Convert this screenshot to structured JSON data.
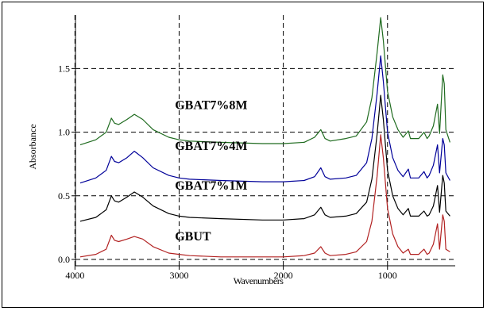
{
  "chart_data": {
    "type": "line",
    "xlabel": "Wavenumbers",
    "ylabel": "Absorbance",
    "xlim": [
      4000,
      350
    ],
    "ylim": [
      0,
      1.9
    ],
    "x_reversed": true,
    "x_ticks": [
      4000,
      3000,
      2000,
      1000
    ],
    "x_tick_labels": [
      "4000",
      "3000",
      "2000",
      "1000"
    ],
    "y_ticks": [
      0.0,
      0.5,
      1.0,
      1.5
    ],
    "y_tick_labels": [
      "0.0",
      "0.5",
      "1.0",
      "1.5"
    ],
    "grid": "dashed",
    "series": [
      {
        "name": "GBUT",
        "color": "#b22222",
        "points": [
          [
            3950,
            0.02
          ],
          [
            3800,
            0.04
          ],
          [
            3700,
            0.08
          ],
          [
            3650,
            0.19
          ],
          [
            3620,
            0.15
          ],
          [
            3580,
            0.14
          ],
          [
            3500,
            0.16
          ],
          [
            3430,
            0.18
          ],
          [
            3350,
            0.16
          ],
          [
            3250,
            0.1
          ],
          [
            3100,
            0.05
          ],
          [
            3000,
            0.04
          ],
          [
            2900,
            0.03
          ],
          [
            2600,
            0.02
          ],
          [
            2200,
            0.02
          ],
          [
            2000,
            0.02
          ],
          [
            1800,
            0.03
          ],
          [
            1700,
            0.05
          ],
          [
            1640,
            0.1
          ],
          [
            1600,
            0.05
          ],
          [
            1550,
            0.03
          ],
          [
            1400,
            0.04
          ],
          [
            1300,
            0.06
          ],
          [
            1200,
            0.14
          ],
          [
            1150,
            0.3
          ],
          [
            1100,
            0.65
          ],
          [
            1065,
            0.98
          ],
          [
            1040,
            0.8
          ],
          [
            1000,
            0.4
          ],
          [
            950,
            0.2
          ],
          [
            900,
            0.1
          ],
          [
            850,
            0.05
          ],
          [
            800,
            0.08
          ],
          [
            780,
            0.04
          ],
          [
            700,
            0.04
          ],
          [
            650,
            0.08
          ],
          [
            620,
            0.04
          ],
          [
            600,
            0.05
          ],
          [
            560,
            0.12
          ],
          [
            520,
            0.28
          ],
          [
            500,
            0.08
          ],
          [
            470,
            0.35
          ],
          [
            455,
            0.3
          ],
          [
            440,
            0.08
          ],
          [
            400,
            0.06
          ]
        ]
      },
      {
        "name": "GBAT7%1M",
        "color": "#000000",
        "points": [
          [
            3950,
            0.3
          ],
          [
            3800,
            0.33
          ],
          [
            3700,
            0.39
          ],
          [
            3650,
            0.5
          ],
          [
            3620,
            0.46
          ],
          [
            3580,
            0.45
          ],
          [
            3500,
            0.49
          ],
          [
            3430,
            0.53
          ],
          [
            3350,
            0.49
          ],
          [
            3250,
            0.42
          ],
          [
            3100,
            0.36
          ],
          [
            3000,
            0.34
          ],
          [
            2900,
            0.33
          ],
          [
            2600,
            0.32
          ],
          [
            2200,
            0.31
          ],
          [
            2000,
            0.31
          ],
          [
            1800,
            0.32
          ],
          [
            1700,
            0.35
          ],
          [
            1640,
            0.41
          ],
          [
            1600,
            0.35
          ],
          [
            1550,
            0.33
          ],
          [
            1400,
            0.34
          ],
          [
            1300,
            0.36
          ],
          [
            1200,
            0.45
          ],
          [
            1150,
            0.63
          ],
          [
            1100,
            0.98
          ],
          [
            1065,
            1.29
          ],
          [
            1040,
            1.1
          ],
          [
            1000,
            0.7
          ],
          [
            950,
            0.5
          ],
          [
            900,
            0.4
          ],
          [
            850,
            0.35
          ],
          [
            800,
            0.4
          ],
          [
            780,
            0.34
          ],
          [
            700,
            0.34
          ],
          [
            650,
            0.38
          ],
          [
            620,
            0.34
          ],
          [
            600,
            0.35
          ],
          [
            560,
            0.42
          ],
          [
            520,
            0.58
          ],
          [
            500,
            0.37
          ],
          [
            470,
            0.66
          ],
          [
            455,
            0.6
          ],
          [
            440,
            0.38
          ],
          [
            400,
            0.34
          ]
        ]
      },
      {
        "name": "GBAT7%4M",
        "color": "#000099",
        "points": [
          [
            3950,
            0.6
          ],
          [
            3800,
            0.64
          ],
          [
            3700,
            0.7
          ],
          [
            3650,
            0.81
          ],
          [
            3620,
            0.77
          ],
          [
            3580,
            0.76
          ],
          [
            3500,
            0.8
          ],
          [
            3430,
            0.85
          ],
          [
            3350,
            0.8
          ],
          [
            3250,
            0.72
          ],
          [
            3100,
            0.66
          ],
          [
            3000,
            0.64
          ],
          [
            2900,
            0.63
          ],
          [
            2600,
            0.62
          ],
          [
            2200,
            0.61
          ],
          [
            2000,
            0.61
          ],
          [
            1800,
            0.62
          ],
          [
            1700,
            0.65
          ],
          [
            1640,
            0.72
          ],
          [
            1600,
            0.65
          ],
          [
            1550,
            0.63
          ],
          [
            1400,
            0.64
          ],
          [
            1300,
            0.66
          ],
          [
            1200,
            0.76
          ],
          [
            1150,
            0.95
          ],
          [
            1100,
            1.3
          ],
          [
            1065,
            1.6
          ],
          [
            1040,
            1.4
          ],
          [
            1000,
            1.0
          ],
          [
            950,
            0.8
          ],
          [
            900,
            0.7
          ],
          [
            850,
            0.65
          ],
          [
            800,
            0.71
          ],
          [
            780,
            0.64
          ],
          [
            700,
            0.64
          ],
          [
            650,
            0.69
          ],
          [
            620,
            0.64
          ],
          [
            600,
            0.66
          ],
          [
            560,
            0.74
          ],
          [
            520,
            0.9
          ],
          [
            500,
            0.68
          ],
          [
            470,
            0.95
          ],
          [
            455,
            0.9
          ],
          [
            440,
            0.68
          ],
          [
            400,
            0.62
          ]
        ]
      },
      {
        "name": "GBAT7%8M",
        "color": "#1f6b1f",
        "points": [
          [
            3950,
            0.9
          ],
          [
            3800,
            0.94
          ],
          [
            3700,
            1.0
          ],
          [
            3650,
            1.11
          ],
          [
            3620,
            1.07
          ],
          [
            3580,
            1.06
          ],
          [
            3500,
            1.1
          ],
          [
            3430,
            1.14
          ],
          [
            3350,
            1.1
          ],
          [
            3250,
            1.02
          ],
          [
            3100,
            0.96
          ],
          [
            3000,
            0.94
          ],
          [
            2900,
            0.93
          ],
          [
            2600,
            0.92
          ],
          [
            2200,
            0.91
          ],
          [
            2000,
            0.91
          ],
          [
            1800,
            0.92
          ],
          [
            1700,
            0.96
          ],
          [
            1640,
            1.02
          ],
          [
            1600,
            0.95
          ],
          [
            1550,
            0.93
          ],
          [
            1400,
            0.95
          ],
          [
            1300,
            0.97
          ],
          [
            1200,
            1.08
          ],
          [
            1150,
            1.27
          ],
          [
            1100,
            1.62
          ],
          [
            1065,
            1.9
          ],
          [
            1040,
            1.72
          ],
          [
            1000,
            1.32
          ],
          [
            950,
            1.12
          ],
          [
            900,
            1.02
          ],
          [
            850,
            0.96
          ],
          [
            800,
            1.01
          ],
          [
            780,
            0.95
          ],
          [
            700,
            0.95
          ],
          [
            650,
            1.0
          ],
          [
            620,
            0.95
          ],
          [
            600,
            0.97
          ],
          [
            560,
            1.05
          ],
          [
            520,
            1.22
          ],
          [
            500,
            0.99
          ],
          [
            470,
            1.45
          ],
          [
            455,
            1.38
          ],
          [
            440,
            1.02
          ],
          [
            400,
            0.92
          ]
        ]
      }
    ],
    "annotations": [
      {
        "text": "GBAT7%8M",
        "x": 3040,
        "y": 1.18
      },
      {
        "text": "GBAT7%4M",
        "x": 3040,
        "y": 0.86
      },
      {
        "text": "GBAT7%1M",
        "x": 3040,
        "y": 0.55
      },
      {
        "text": "GBUT",
        "x": 3040,
        "y": 0.15
      }
    ]
  }
}
